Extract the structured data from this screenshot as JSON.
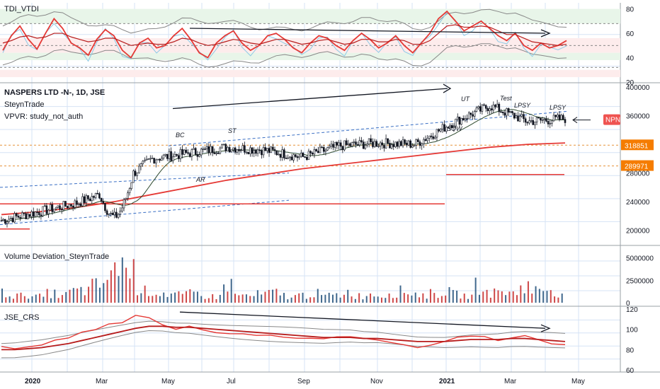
{
  "colors": {
    "grid": "#d6e3f5",
    "red": "#e53935",
    "black": "#131722",
    "up": "#26a69a",
    "down": "#ef5350",
    "ma": "#2e4a2e",
    "band": "#888888",
    "greenZone": "#e8f5e9",
    "redZone": "#fdecec",
    "orangeLine": "#e69138",
    "blueDash": "#3a6fc4",
    "volBlue": "#1f4e79",
    "volRed": "#c62828",
    "badgeNPN": "#ef5350",
    "badgeLevel": "#f57c00"
  },
  "panels": {
    "tdi": {
      "title": "TDI_VTDI",
      "ticks": [
        "80",
        "60",
        "40",
        "20"
      ]
    },
    "price": {
      "title": "NASPERS LTD -N-, 1D, JSE",
      "subtitle1": "SteynTrade",
      "subtitle2": "VPVR: study_not_auth",
      "ticks": [
        "400000",
        "360000",
        "320000",
        "280000",
        "240000",
        "200000"
      ],
      "badge_npn": "NPN",
      "badge_level1": "318851",
      "badge_level2": "289971",
      "annotations": [
        "BC",
        "ST",
        "AR",
        "UT",
        "Test",
        "LPSY",
        "LPSY",
        "SOW"
      ]
    },
    "volume": {
      "title": "Volume Deviation_SteynTrade",
      "ticks": [
        "5000000",
        "2500000",
        "0"
      ]
    },
    "crs": {
      "title": "JSE_CRS",
      "ticks": [
        "120",
        "100",
        "80",
        "60"
      ]
    }
  },
  "xaxis": {
    "labels": [
      "2020",
      "Mar",
      "May",
      "Jul",
      "Sep",
      "Nov",
      "2021",
      "Mar",
      "May"
    ]
  },
  "chart_data": [
    {
      "type": "line",
      "title": "TDI_VTDI",
      "ylim": [
        20,
        85
      ],
      "note_levels": [
        32,
        50,
        68
      ],
      "series": [
        {
          "values": [
            46,
            58,
            66,
            55,
            47,
            60,
            72,
            64,
            52,
            48,
            42,
            55,
            63,
            58,
            46,
            40,
            52,
            56,
            48,
            50,
            58,
            64,
            55,
            44,
            40,
            52,
            58,
            62,
            52,
            46,
            50,
            58,
            60,
            55,
            48,
            44,
            52,
            58,
            56,
            50,
            46,
            54,
            60,
            55,
            48,
            52,
            58,
            50,
            44,
            52,
            60,
            72,
            78,
            70,
            62,
            66,
            70,
            64,
            58,
            54,
            60,
            50,
            46,
            52,
            48,
            50,
            54
          ]
        },
        {
          "values": [
            52,
            54,
            57,
            58,
            56,
            57,
            60,
            60,
            57,
            55,
            53,
            54,
            56,
            56,
            53,
            50,
            51,
            52,
            51,
            51,
            53,
            56,
            55,
            52,
            50,
            51,
            53,
            55,
            54,
            52,
            51,
            53,
            55,
            55,
            53,
            51,
            52,
            54,
            55,
            53,
            51,
            52,
            55,
            55,
            53,
            53,
            55,
            54,
            51,
            51,
            54,
            60,
            66,
            67,
            65,
            65,
            66,
            65,
            62,
            59,
            59,
            56,
            53,
            52,
            51,
            50,
            51
          ]
        }
      ]
    },
    {
      "type": "candlestick",
      "title": "NASPERS LTD -N-, 1D, JSE",
      "ylim": [
        180000,
        405000
      ],
      "x": [
        "2020-01",
        "2020-02",
        "2020-03",
        "2020-04",
        "2020-05",
        "2020-06",
        "2020-07",
        "2020-08",
        "2020-09",
        "2020-10",
        "2020-11",
        "2020-12",
        "2021-01",
        "2021-02",
        "2021-03",
        "2021-04"
      ],
      "close": [
        214000,
        226000,
        238000,
        258000,
        300000,
        308000,
        316000,
        312000,
        302000,
        318000,
        322000,
        320000,
        350000,
        374000,
        352000,
        356000
      ],
      "levels": [
        318851,
        289971
      ],
      "ma_long": [
        222000,
        226000,
        232000,
        240000,
        250000,
        260000,
        270000,
        278000,
        286000,
        292000,
        298000,
        304000,
        310000,
        316000,
        320000,
        322000
      ]
    },
    {
      "type": "bar",
      "title": "Volume Deviation_SteynTrade",
      "ylim": [
        0,
        6000000
      ],
      "values": [
        1300000,
        900000,
        1100000,
        800000,
        1200000,
        1000000,
        1500000,
        1600000,
        2200000,
        3000000,
        5400000,
        4200000,
        2000000,
        1500000,
        1300000,
        1100000,
        1000000,
        1200000,
        900000,
        800000,
        2400000,
        1000000,
        900000,
        1100000,
        1300000,
        1000000,
        800000,
        1000000,
        1200000,
        900000,
        1000000,
        1400000,
        900000,
        1100000,
        1000000,
        1300000,
        1500000,
        1200000,
        1000000,
        1200000,
        1400000,
        1100000,
        900000,
        2200000,
        1300000,
        1500000,
        1200000,
        2300000,
        1600000,
        1800000,
        1400000,
        1300000
      ]
    },
    {
      "type": "line",
      "title": "JSE_CRS",
      "ylim": [
        58,
        122
      ],
      "series": [
        {
          "values": [
            82,
            80,
            84,
            86,
            88,
            92,
            96,
            100,
            104,
            108,
            114,
            112,
            104,
            100,
            102,
            100,
            98,
            97,
            96,
            94,
            95,
            93,
            92,
            90,
            91,
            92,
            93,
            92,
            90,
            88,
            86,
            82,
            84,
            88,
            92,
            94,
            92,
            90,
            92,
            94,
            90,
            86,
            84
          ]
        },
        {
          "values": [
            80,
            80,
            81,
            82,
            84,
            86,
            89,
            92,
            95,
            98,
            101,
            103,
            103,
            102,
            102,
            101,
            100,
            99,
            98,
            97,
            96,
            95,
            94,
            93,
            92,
            92,
            92,
            91,
            91,
            90,
            89,
            88,
            88,
            88,
            89,
            90,
            90,
            90,
            91,
            91,
            90,
            89,
            88
          ]
        }
      ]
    }
  ]
}
